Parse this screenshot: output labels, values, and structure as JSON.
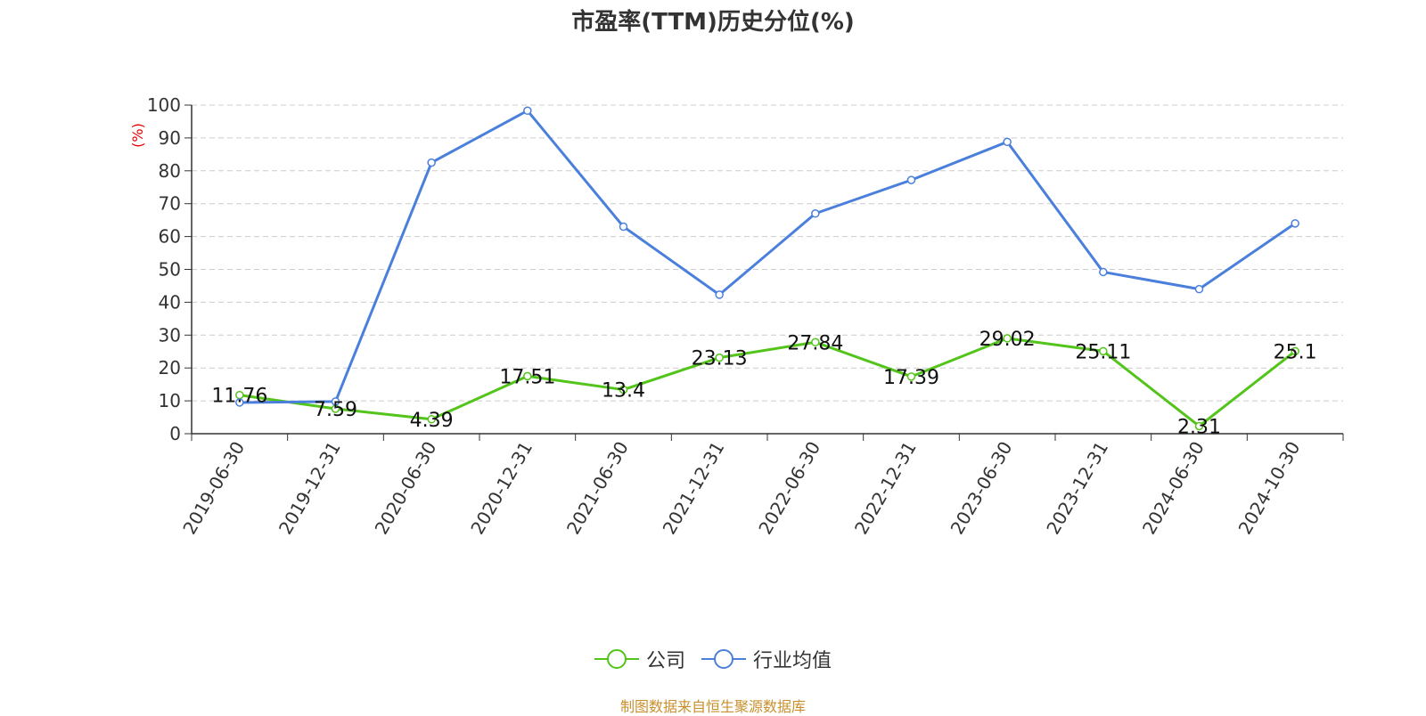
{
  "chart_data": {
    "type": "line",
    "title": "市盈率(TTM)历史分位(%)",
    "ylabel": "(%)",
    "ylim": [
      0,
      100
    ],
    "yticks": [
      0,
      10,
      20,
      30,
      40,
      50,
      60,
      70,
      80,
      90,
      100
    ],
    "grid": true,
    "legend_position": "bottom-center",
    "categories": [
      "2019-06-30",
      "2019-12-31",
      "2020-06-30",
      "2020-12-31",
      "2021-06-30",
      "2021-12-31",
      "2022-06-30",
      "2022-12-31",
      "2023-06-30",
      "2023-12-31",
      "2024-06-30",
      "2024-10-30"
    ],
    "series": [
      {
        "name": "公司",
        "color": "#52c41a",
        "show_labels": true,
        "values": [
          11.76,
          7.59,
          4.39,
          17.51,
          13.4,
          23.13,
          27.84,
          17.39,
          29.02,
          25.11,
          2.31,
          25.1
        ]
      },
      {
        "name": "行业均值",
        "color": "#4a7fdc",
        "show_labels": false,
        "values": [
          9.5,
          9.8,
          82.5,
          98.3,
          63.0,
          42.3,
          67.0,
          77.2,
          88.8,
          49.2,
          44.0,
          64.0
        ]
      }
    ]
  },
  "source": "制图数据来自恒生聚源数据库",
  "colors": {
    "axis": "#333333",
    "grid": "#cccccc",
    "ylabel": "#e60000"
  }
}
